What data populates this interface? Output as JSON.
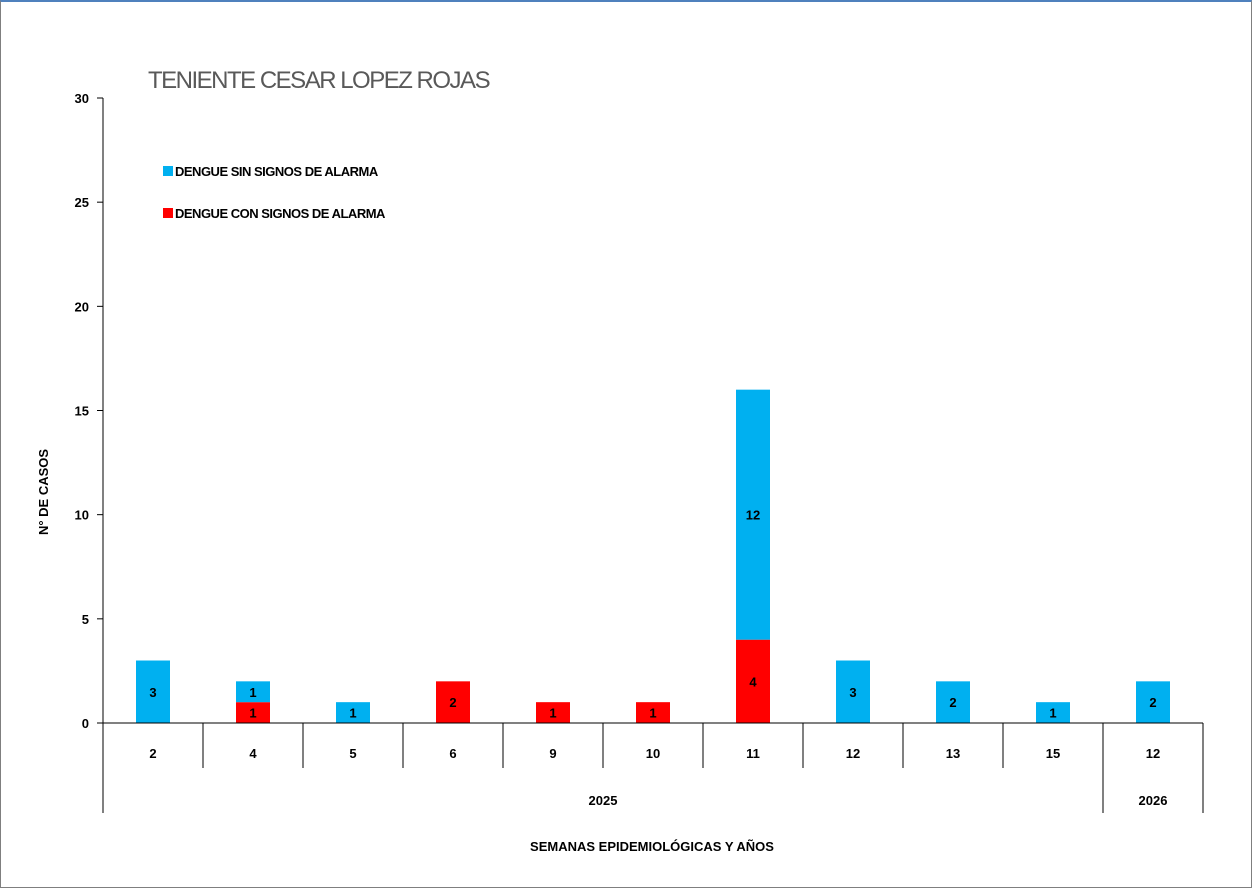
{
  "chart_data": {
    "type": "bar",
    "stacked": true,
    "title": "TENIENTE CESAR LOPEZ ROJAS",
    "ylabel": "N° DE CASOS",
    "xlabel": "SEMANAS EPIDEMIOLÓGICAS Y AÑOS",
    "ylim": [
      0,
      30
    ],
    "yticks": [
      0,
      5,
      10,
      15,
      20,
      25,
      30
    ],
    "grid": false,
    "legend_position": "top-left",
    "categories": [
      "2",
      "4",
      "5",
      "6",
      "9",
      "10",
      "11",
      "12",
      "13",
      "15",
      "12"
    ],
    "groups": [
      {
        "label": "2025",
        "count": 10
      },
      {
        "label": "2026",
        "count": 1
      }
    ],
    "series": [
      {
        "name": "DENGUE CON SIGNOS DE ALARMA",
        "color": "#ff0000",
        "values": [
          0,
          1,
          0,
          2,
          1,
          1,
          4,
          0,
          0,
          0,
          0
        ]
      },
      {
        "name": "DENGUE SIN SIGNOS DE ALARMA",
        "color": "#00b0f0",
        "values": [
          3,
          1,
          1,
          0,
          0,
          0,
          12,
          3,
          2,
          1,
          2
        ]
      }
    ],
    "legend_order": [
      "DENGUE SIN SIGNOS DE ALARMA",
      "DENGUE CON SIGNOS DE ALARMA"
    ]
  }
}
